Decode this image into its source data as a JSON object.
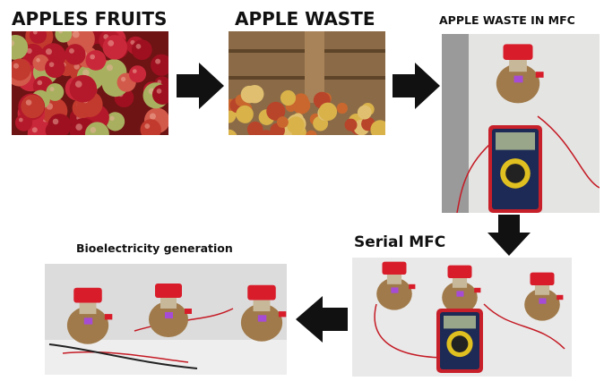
{
  "nodes": [
    {
      "label": "APPLES FRUITS"
    },
    {
      "label": "APPLE WASTE"
    },
    {
      "label": "APPLE WASTE IN MFC"
    },
    {
      "label": "Serial MFC"
    },
    {
      "label": "Bioelectricity generation"
    }
  ]
}
